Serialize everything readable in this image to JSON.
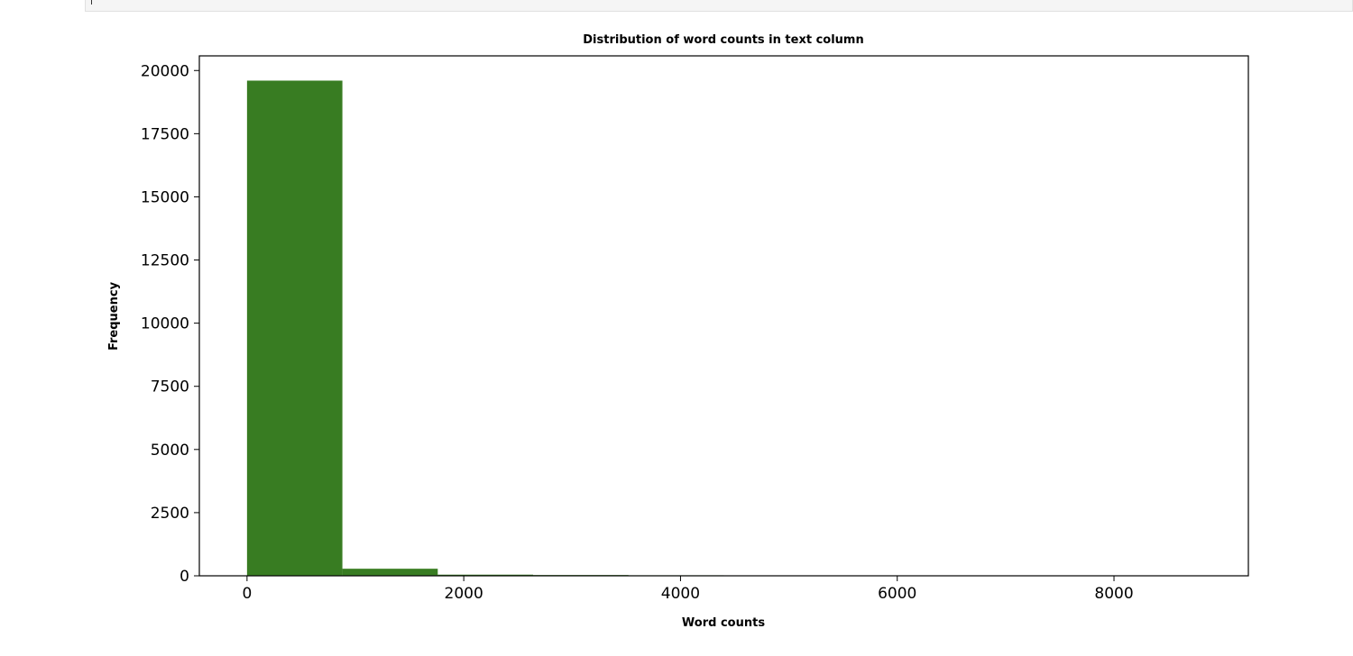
{
  "chart_data": {
    "type": "bar",
    "title": "Distribution of word counts in text column",
    "xlabel": "Word counts",
    "ylabel": "Frequency",
    "bar_color": "#387c22",
    "bins": [
      {
        "start": 0,
        "end": 880,
        "count": 19600
      },
      {
        "start": 880,
        "end": 1760,
        "count": 280
      },
      {
        "start": 1760,
        "end": 2640,
        "count": 45
      },
      {
        "start": 2640,
        "end": 3520,
        "count": 30
      },
      {
        "start": 3520,
        "end": 4400,
        "count": 20
      },
      {
        "start": 4400,
        "end": 5280,
        "count": 3
      },
      {
        "start": 5280,
        "end": 6160,
        "count": 15
      },
      {
        "start": 6160,
        "end": 7040,
        "count": 2
      },
      {
        "start": 7040,
        "end": 7920,
        "count": 1
      },
      {
        "start": 7920,
        "end": 8800,
        "count": 1
      }
    ],
    "xlim": [
      -440,
      9240
    ],
    "ylim": [
      0,
      20580
    ],
    "xticks": [
      0,
      2000,
      4000,
      6000,
      8000
    ],
    "yticks": [
      0,
      2500,
      5000,
      7500,
      10000,
      12500,
      15000,
      17500,
      20000
    ],
    "grid": false,
    "legend": false
  }
}
